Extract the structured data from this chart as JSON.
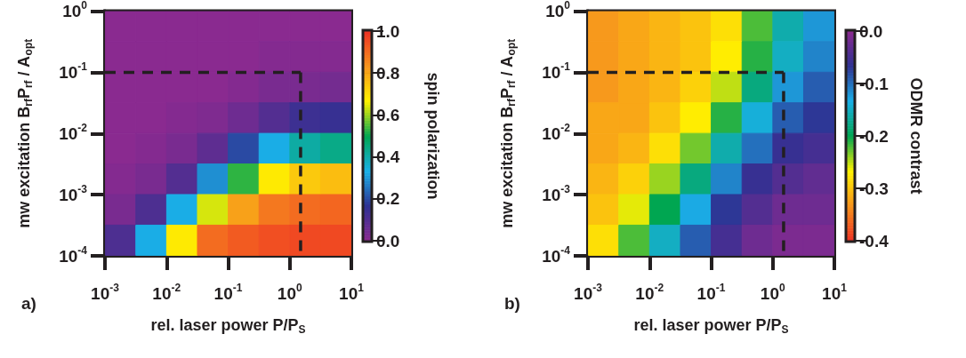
{
  "chart_data": [
    {
      "type": "heatmap",
      "xlabel": "rel. laser power P/P$_{S}$",
      "ylabel": "mw excitation B$_{rf}$P$_{rf}$ / A$_{opt}$",
      "clabel": "spin polarization",
      "annotations": [
        "a)"
      ],
      "x": [
        0.0018,
        0.0056,
        0.018,
        0.056,
        0.18,
        0.56,
        1.8,
        5.6
      ],
      "y": [
        0.56,
        0.18,
        0.056,
        0.018,
        0.0056,
        0.0018,
        0.00056,
        0.00018
      ],
      "cells": [
        [
          0,
          0,
          0,
          0,
          0,
          0,
          0,
          0
        ],
        [
          0,
          0,
          0,
          0,
          0,
          0.01,
          0.01,
          0.01
        ],
        [
          0,
          0,
          0,
          0,
          0.01,
          0.03,
          0.03,
          0.04
        ],
        [
          0,
          0,
          0.01,
          0.02,
          0.05,
          0.1,
          0.14,
          0.15
        ],
        [
          0,
          0.01,
          0.03,
          0.08,
          0.2,
          0.33,
          0.41,
          0.44
        ],
        [
          0.01,
          0.03,
          0.1,
          0.29,
          0.53,
          0.68,
          0.74,
          0.76
        ],
        [
          0.03,
          0.11,
          0.33,
          0.64,
          0.81,
          0.88,
          0.9,
          0.91
        ],
        [
          0.11,
          0.33,
          0.68,
          0.9,
          0.93,
          0.95,
          0.96,
          0.96
        ]
      ],
      "colors": [
        "#8a2a90",
        "#2e3192",
        "#1ab0e8",
        "#00a651",
        "#fff200",
        "#f7941d",
        "#ee3124"
      ],
      "clim": [
        0,
        1
      ],
      "cticks": [
        {
          "value": 0,
          "label": "0.0"
        },
        {
          "value": 0.2,
          "label": "0.2"
        },
        {
          "value": 0.4,
          "label": "0.4"
        },
        {
          "value": 0.6,
          "label": "0.6"
        },
        {
          "value": 0.8,
          "label": "0.8"
        },
        {
          "value": 1,
          "label": "1.0"
        }
      ],
      "log": "xy",
      "xlim": [
        0.001,
        10
      ],
      "ylim": [
        0.0001,
        1
      ],
      "xticks": [
        {
          "value": 0.001,
          "label": "10$^{-3}$"
        },
        {
          "value": 0.01,
          "label": "10$^{-2}$"
        },
        {
          "value": 0.1,
          "label": "10$^{-1}$"
        },
        {
          "value": 1,
          "label": "10$^{0}$"
        },
        {
          "value": 10,
          "label": "10$^{1}$"
        }
      ],
      "yticks": [
        {
          "value": 0.0001,
          "label": "10$^{-4}$"
        },
        {
          "value": 0.001,
          "label": "10$^{-3}$"
        },
        {
          "value": 0.01,
          "label": "10$^{-2}$"
        },
        {
          "value": 0.1,
          "label": "10$^{-1}$"
        },
        {
          "value": 1,
          "label": "10$^{0}$"
        }
      ],
      "ref_lines": [
        {
          "axis": "x",
          "value": 1.5,
          "color": "#231f20",
          "line_style": "dashed"
        },
        {
          "axis": "y",
          "value": 0.1,
          "color": "#231f20",
          "line_style": "dashed"
        }
      ]
    },
    {
      "type": "heatmap",
      "xlabel": "rel. laser power P/P$_{S}$",
      "ylabel": "mw excitation B$_{rf}$P$_{rf}$ / A$_{opt}$",
      "clabel": "ODMR contrast",
      "annotations": [
        "b)"
      ],
      "x": [
        0.0018,
        0.0056,
        0.018,
        0.056,
        0.18,
        0.56,
        1.8,
        5.6
      ],
      "y": [
        0.56,
        0.18,
        0.056,
        0.018,
        0.0056,
        0.0018,
        0.00056,
        0.00018
      ],
      "cells": [
        [
          -0.33,
          -0.32,
          -0.31,
          -0.3,
          -0.28,
          -0.22,
          -0.16,
          -0.12
        ],
        [
          -0.33,
          -0.32,
          -0.31,
          -0.3,
          -0.27,
          -0.21,
          -0.15,
          -0.11
        ],
        [
          -0.33,
          -0.32,
          -0.31,
          -0.29,
          -0.25,
          -0.18,
          -0.12,
          -0.09
        ],
        [
          -0.32,
          -0.32,
          -0.3,
          -0.27,
          -0.21,
          -0.14,
          -0.09,
          -0.07
        ],
        [
          -0.32,
          -0.31,
          -0.28,
          -0.23,
          -0.16,
          -0.1,
          -0.06,
          -0.05
        ],
        [
          -0.31,
          -0.29,
          -0.24,
          -0.18,
          -0.11,
          -0.06,
          -0.04,
          -0.03
        ],
        [
          -0.3,
          -0.26,
          -0.2,
          -0.13,
          -0.07,
          -0.04,
          -0.02,
          -0.02
        ],
        [
          -0.28,
          -0.22,
          -0.15,
          -0.09,
          -0.05,
          -0.02,
          -0.01,
          -0.01
        ]
      ],
      "colors": [
        "#ee3124",
        "#f7941d",
        "#fff200",
        "#00a651",
        "#1ab0e8",
        "#2e3192",
        "#8a2a90"
      ],
      "clim": [
        -0.4,
        0
      ],
      "cticks": [
        {
          "value": -0.4,
          "label": "-0.4"
        },
        {
          "value": -0.3,
          "label": "-0.3"
        },
        {
          "value": -0.2,
          "label": "-0.2"
        },
        {
          "value": -0.1,
          "label": "-0.1"
        },
        {
          "value": 0,
          "label": "0.0"
        }
      ],
      "log": "xy",
      "xlim": [
        0.001,
        10
      ],
      "ylim": [
        0.0001,
        1
      ],
      "xticks": [
        {
          "value": 0.001,
          "label": "10$^{-3}$"
        },
        {
          "value": 0.01,
          "label": "10$^{-2}$"
        },
        {
          "value": 0.1,
          "label": "10$^{-1}$"
        },
        {
          "value": 1,
          "label": "10$^{0}$"
        },
        {
          "value": 10,
          "label": "10$^{1}$"
        }
      ],
      "yticks": [
        {
          "value": 0.0001,
          "label": "10$^{-4}$"
        },
        {
          "value": 0.001,
          "label": "10$^{-3}$"
        },
        {
          "value": 0.01,
          "label": "10$^{-2}$"
        },
        {
          "value": 0.1,
          "label": "10$^{-1}$"
        },
        {
          "value": 1,
          "label": "10$^{0}$"
        }
      ],
      "ref_lines": [
        {
          "axis": "x",
          "value": 1.5,
          "color": "#231f20",
          "line_style": "dashed"
        },
        {
          "axis": "y",
          "value": 0.1,
          "color": "#231f20",
          "line_style": "dashed"
        }
      ]
    }
  ]
}
